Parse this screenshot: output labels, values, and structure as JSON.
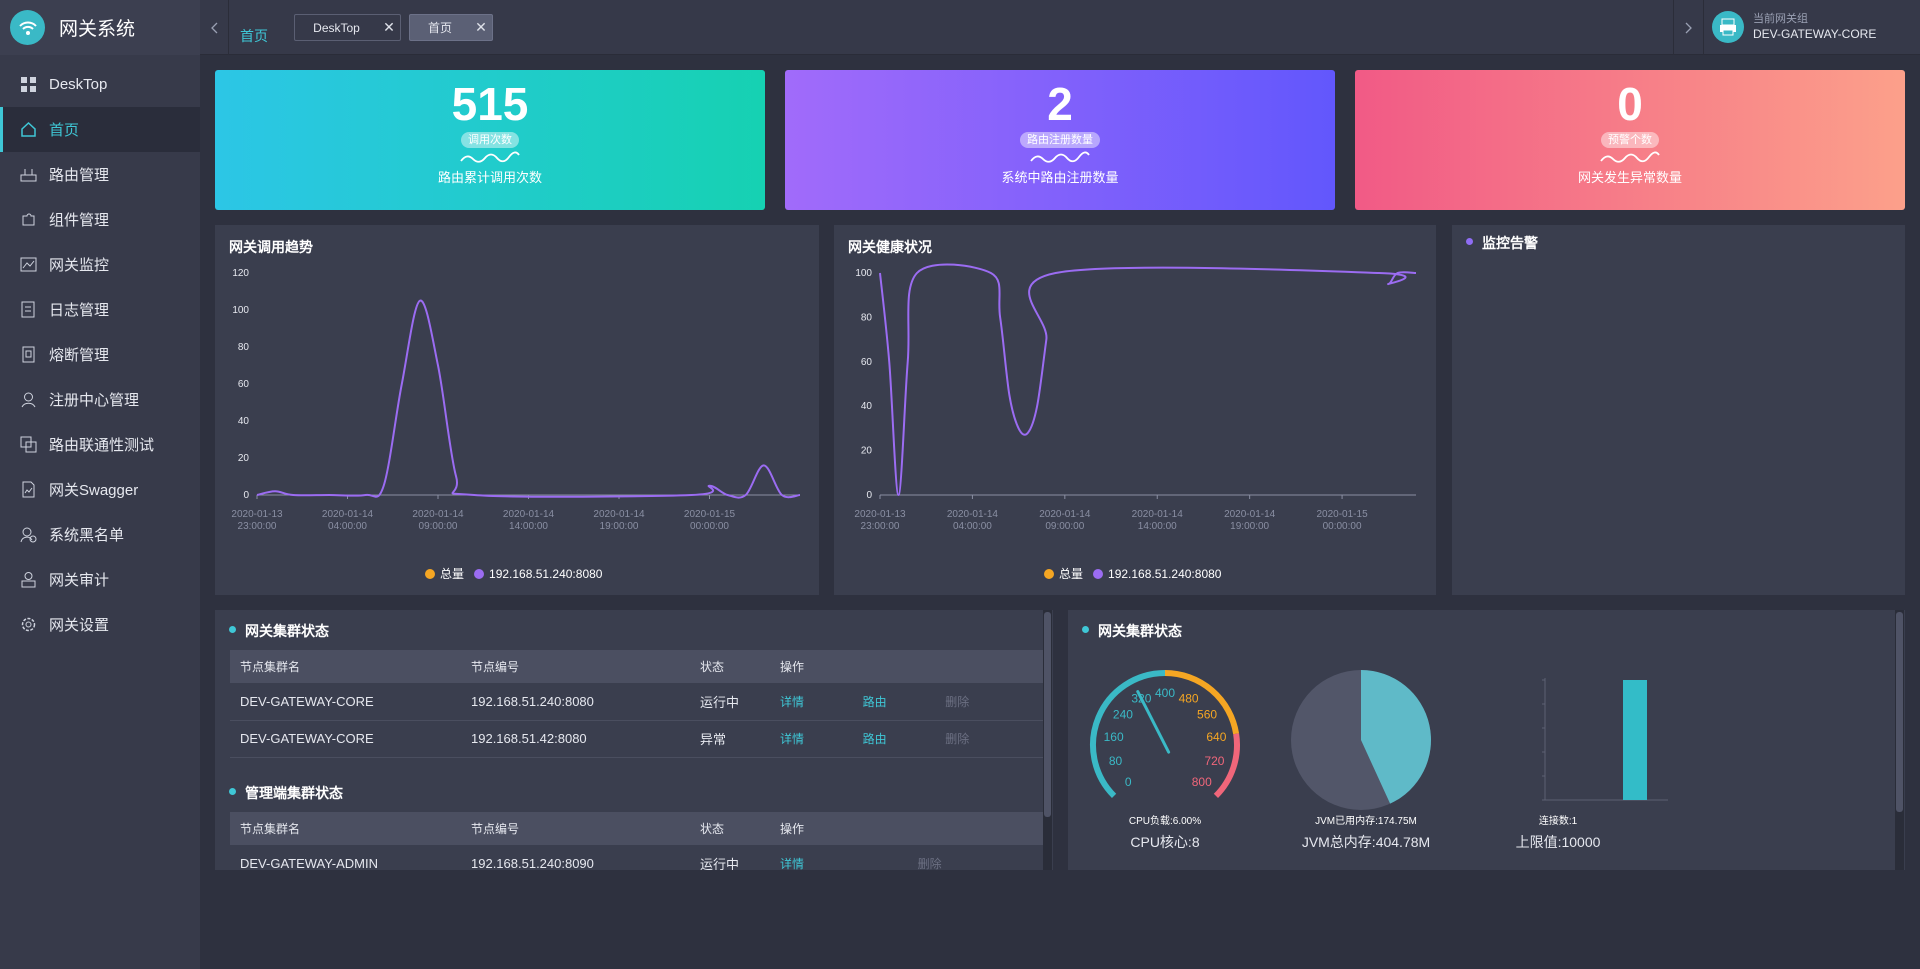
{
  "app": {
    "title": "网关系统"
  },
  "sidebar": {
    "items": [
      {
        "label": "DeskTop",
        "icon": "grid-icon"
      },
      {
        "label": "首页",
        "icon": "home-icon",
        "active": true
      },
      {
        "label": "路由管理",
        "icon": "router-icon"
      },
      {
        "label": "组件管理",
        "icon": "puzzle-icon"
      },
      {
        "label": "网关监控",
        "icon": "monitor-chart-icon"
      },
      {
        "label": "日志管理",
        "icon": "log-icon"
      },
      {
        "label": "熔断管理",
        "icon": "fuse-icon"
      },
      {
        "label": "注册中心管理",
        "icon": "user-icon"
      },
      {
        "label": "路由联通性测试",
        "icon": "test-icon"
      },
      {
        "label": "网关Swagger",
        "icon": "document-icon"
      },
      {
        "label": "系统黑名单",
        "icon": "blacklist-user-icon"
      },
      {
        "label": "网关审计",
        "icon": "audit-icon"
      },
      {
        "label": "网关设置",
        "icon": "gear-icon"
      }
    ]
  },
  "header": {
    "breadcrumb": "首页",
    "tabs": [
      {
        "label": "DeskTop",
        "close": "✕"
      },
      {
        "label": "首页",
        "close": "✕"
      }
    ],
    "gateway_group_label": "当前网关组",
    "gateway_group_value": "DEV-GATEWAY-CORE"
  },
  "stats": [
    {
      "value": "515",
      "pill": "调用次数",
      "desc": "路由累计调用次数",
      "colors": [
        "#2cc6e6",
        "#16d1b2"
      ]
    },
    {
      "value": "2",
      "pill": "路由注册数量",
      "desc": "系统中路由注册数量",
      "colors": [
        "#a16bfa",
        "#6257fc"
      ]
    },
    {
      "value": "0",
      "pill": "预警个数",
      "desc": "网关发生异常数量",
      "colors": [
        "#f15a86",
        "#fca08a"
      ]
    }
  ],
  "panels": {
    "trend_title": "网关调用趋势",
    "health_title": "网关健康状况",
    "alert_title": "监控告警",
    "cluster_title": "网关集群状态",
    "admin_cluster_title": "管理端集群状态",
    "system_title": "网关集群状态"
  },
  "legend": {
    "total": "总量",
    "node": "192.168.51.240:8080",
    "total_color": "#f5a623",
    "node_color": "#9b6cf2"
  },
  "table_headers": [
    "节点集群名",
    "节点编号",
    "状态",
    "操作"
  ],
  "cluster_rows": [
    {
      "name": "DEV-GATEWAY-CORE",
      "node": "192.168.51.240:8080",
      "status": "运行中",
      "status_color": "#32c79b",
      "detail": "详情",
      "route": "路由",
      "del": "删除"
    },
    {
      "name": "DEV-GATEWAY-CORE",
      "node": "192.168.51.42:8080",
      "status": "异常",
      "status_color": "#ef4a4f",
      "detail": "详情",
      "route": "路由",
      "del": "删除"
    }
  ],
  "admin_rows": [
    {
      "name": "DEV-GATEWAY-ADMIN",
      "node": "192.168.51.240:8090",
      "status": "运行中",
      "detail": "详情",
      "del": "删除"
    }
  ],
  "system_metrics": {
    "cpu_label": "CPU负载:6.00%",
    "cpu_sub": "CPU核心:8",
    "cpu_load_percent": 6.0,
    "gauge_ticks": [
      "0",
      "80",
      "160",
      "240",
      "320",
      "400",
      "480",
      "560",
      "640",
      "720",
      "800"
    ],
    "jvm_label": "JVM已用内存:174.75M",
    "jvm_sub": "JVM总内存:404.78M",
    "jvm_used_mb": 174.75,
    "jvm_total_mb": 404.78,
    "conn_label": "连接数:1",
    "conn_sub": "上限值:10000",
    "conn_count": 1
  },
  "chart_data": [
    {
      "type": "line",
      "title": "网关调用趋势",
      "x_ticks": [
        "2020-01-13 23:00:00",
        "2020-01-14 04:00:00",
        "2020-01-14 09:00:00",
        "2020-01-14 14:00:00",
        "2020-01-14 19:00:00",
        "2020-01-15 00:00:00"
      ],
      "yticks": [
        0,
        20,
        40,
        60,
        80,
        100,
        120
      ],
      "ylim": [
        0,
        120
      ],
      "xlim_hours": [
        0,
        30
      ],
      "series": [
        {
          "name": "总量",
          "color": "#f5a623",
          "points": []
        },
        {
          "name": "192.168.51.240:8080",
          "color": "#9b6cf2",
          "points": [
            [
              0,
              0
            ],
            [
              1,
              2
            ],
            [
              2,
              0
            ],
            [
              4,
              0
            ],
            [
              6,
              0
            ],
            [
              7,
              5
            ],
            [
              8,
              60
            ],
            [
              9,
              105
            ],
            [
              10,
              70
            ],
            [
              11,
              10
            ],
            [
              12,
              0
            ],
            [
              24,
              0
            ],
            [
              25,
              5
            ],
            [
              26,
              0
            ],
            [
              27,
              0
            ],
            [
              28,
              16
            ],
            [
              29,
              0
            ],
            [
              30,
              0
            ]
          ]
        }
      ],
      "legend": "bottom-center"
    },
    {
      "type": "line",
      "title": "网关健康状况",
      "x_ticks": [
        "2020-01-13 23:00:00",
        "2020-01-14 04:00:00",
        "2020-01-14 09:00:00",
        "2020-01-14 14:00:00",
        "2020-01-14 19:00:00",
        "2020-01-15 00:00:00"
      ],
      "yticks": [
        0,
        20,
        40,
        60,
        80,
        100
      ],
      "ylim": [
        0,
        100
      ],
      "xlim_hours": [
        0,
        29
      ],
      "series": [
        {
          "name": "总量",
          "color": "#f5a623",
          "points": []
        },
        {
          "name": "192.168.51.240:8080",
          "color": "#9b6cf2",
          "points": [
            [
              0,
              100
            ],
            [
              0.5,
              60
            ],
            [
              1,
              0
            ],
            [
              1.5,
              60
            ],
            [
              2,
              100
            ],
            [
              6,
              100
            ],
            [
              6.5,
              80
            ],
            [
              7,
              45
            ],
            [
              7.5,
              30
            ],
            [
              8,
              28
            ],
            [
              8.5,
              40
            ],
            [
              9,
              70
            ],
            [
              9.5,
              100
            ],
            [
              27,
              100
            ],
            [
              27.5,
              95
            ],
            [
              28,
              100
            ],
            [
              29,
              100
            ]
          ]
        }
      ],
      "legend": "bottom-center"
    }
  ]
}
